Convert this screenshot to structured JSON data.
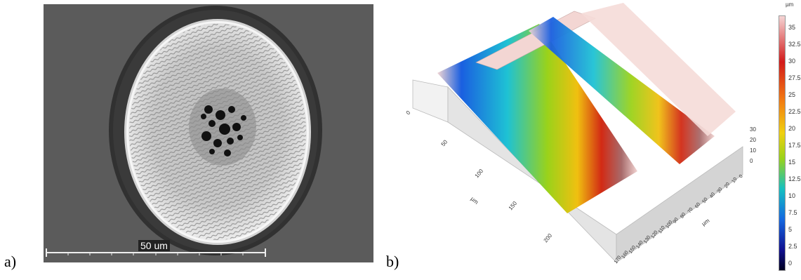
{
  "panel_a": {
    "label": "a)",
    "scale_bar_text": "50 um"
  },
  "panel_b": {
    "label": "b)",
    "x_axis_label": "µm",
    "y_axis_label": "µm",
    "x_ticks": [
      "0",
      "50",
      "100",
      "150",
      "200"
    ],
    "y_ticks": [
      "170",
      "160",
      "150",
      "140",
      "130",
      "120",
      "110",
      "100",
      "90",
      "80",
      "70",
      "60",
      "50",
      "40",
      "30",
      "20",
      "10",
      "0"
    ],
    "z_ticks": [
      "30",
      "20",
      "10",
      "0"
    ],
    "colorbar": {
      "unit": "µm",
      "ticks": [
        "35",
        "32.5",
        "30",
        "27.5",
        "25",
        "22.5",
        "20",
        "17.5",
        "15",
        "12.5",
        "10",
        "7.5",
        "5",
        "2.5",
        "0"
      ],
      "colors": [
        "#f5d5d5",
        "#d21a1a",
        "#f27a12",
        "#f0d010",
        "#9ad21a",
        "#15c0c0",
        "#1468e0",
        "#101090",
        "#000020"
      ]
    }
  }
}
